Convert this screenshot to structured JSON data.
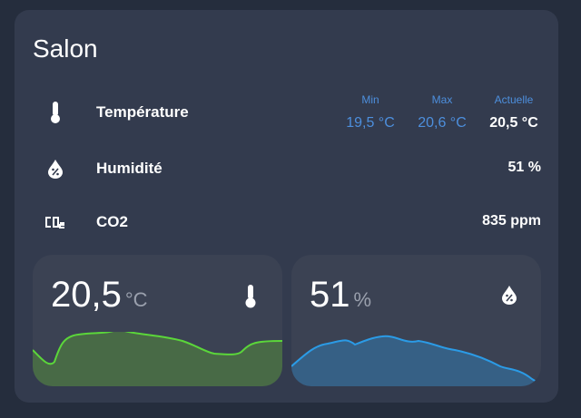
{
  "card": {
    "title": "Salon",
    "rows": [
      {
        "label": "Température",
        "stats": [
          {
            "label": "Min",
            "value": "19,5 °C"
          },
          {
            "label": "Max",
            "value": "20,6 °C"
          },
          {
            "label": "Actuelle",
            "value": "20,5 °C"
          }
        ]
      },
      {
        "label": "Humidité",
        "value": "51 %"
      },
      {
        "label": "CO2",
        "value": "835 ppm"
      }
    ],
    "tiles": [
      {
        "value": "20,5",
        "unit": "°C"
      },
      {
        "value": "51",
        "unit": "%"
      }
    ]
  }
}
